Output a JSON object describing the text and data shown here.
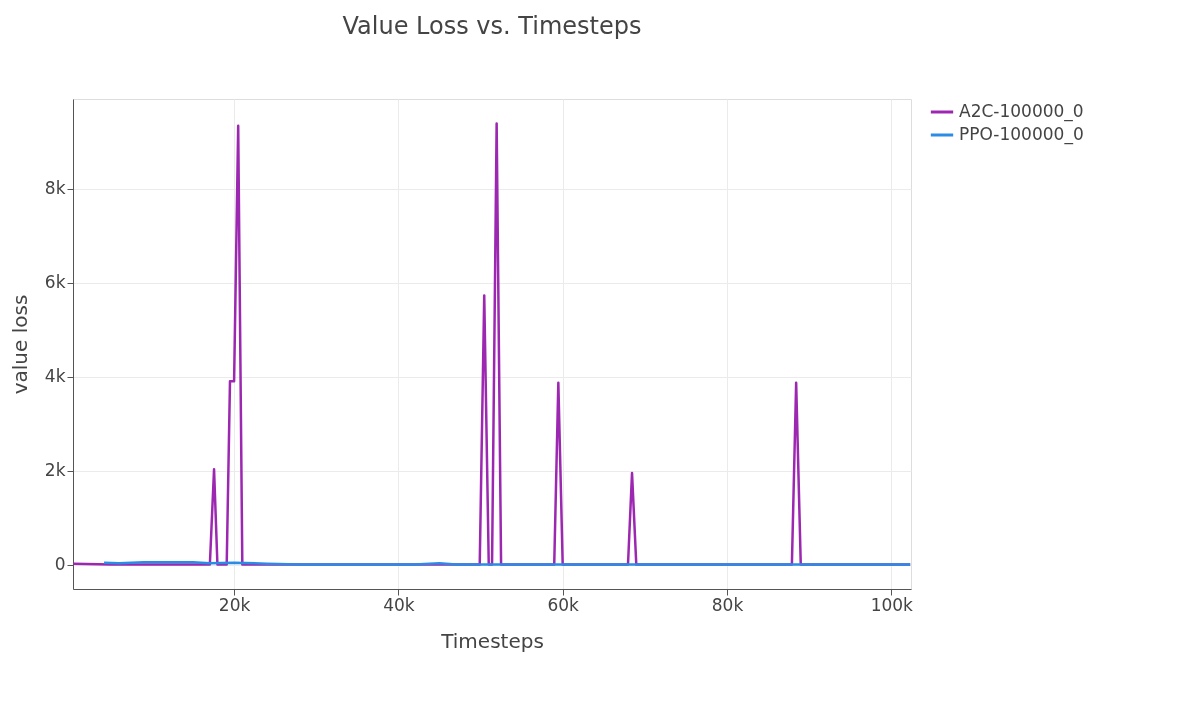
{
  "chart_data": {
    "type": "line",
    "title": "Value Loss vs. Timesteps",
    "xlabel": "Timesteps",
    "ylabel": "value loss",
    "xlim": [
      390,
      102400
    ],
    "xticks": [
      {
        "value": 20000,
        "label": "20k"
      },
      {
        "value": 40000,
        "label": "40k"
      },
      {
        "value": 60000,
        "label": "60k"
      },
      {
        "value": 80000,
        "label": "80k"
      },
      {
        "value": 100000,
        "label": "100k"
      }
    ],
    "ylim": [
      -520,
      9910
    ],
    "yticks": [
      0,
      {
        "value": 2000,
        "label": "2k"
      },
      {
        "value": 4000,
        "label": "4k"
      },
      {
        "value": 6000,
        "label": "6k"
      },
      {
        "value": 8000,
        "label": "8k"
      }
    ],
    "grid": true,
    "legend": "top right",
    "line_style": "solid",
    "marker": "none",
    "series": [
      {
        "name": "A2C-100000_0",
        "color": "#9c27b0",
        "x": [
          400,
          5000,
          17050,
          17560,
          17970,
          19100,
          19500,
          20000,
          20500,
          21000,
          30000,
          49900,
          50450,
          51000,
          51400,
          51960,
          52500,
          58970,
          59470,
          60000,
          67950,
          68440,
          68960,
          87900,
          88420,
          88980,
          102300
        ],
        "values": [
          20,
          0,
          0,
          2030,
          0,
          0,
          3900,
          3900,
          9340,
          0,
          0,
          0,
          5730,
          0,
          0,
          9390,
          0,
          0,
          3870,
          0,
          0,
          1950,
          0,
          0,
          3870,
          0,
          0
        ]
      },
      {
        "name": "PPO-100000_0",
        "color": "#2b8ce6",
        "x": [
          4170,
          6000,
          9000,
          12000,
          15000,
          17000,
          20000,
          24000,
          28000,
          35000,
          42000,
          45000,
          47000,
          60000,
          80000,
          102300
        ],
        "values": [
          40,
          30,
          50,
          50,
          50,
          30,
          40,
          20,
          0,
          0,
          0,
          30,
          0,
          0,
          0,
          0
        ]
      }
    ]
  }
}
